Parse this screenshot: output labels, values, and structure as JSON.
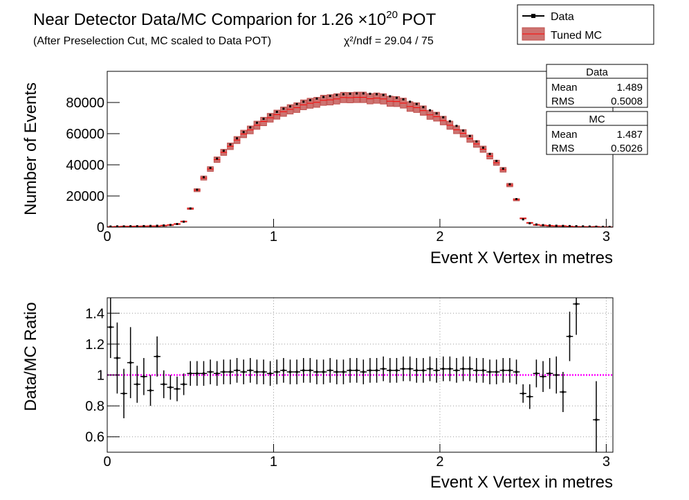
{
  "chart_data": [
    {
      "type": "histogram",
      "title": "Near Detector Data/MC Comparion for 1.26 ×10",
      "title_exponent": "20",
      "title_suffix": "POT",
      "subtitle": "(After Preselection Cut, MC scaled to Data POT)",
      "annotation": "χ²/ndf = 29.04 / 75",
      "x_label": "Event X Vertex in metres",
      "y_label": "Number of Events",
      "x": [
        0.02,
        0.06,
        0.1,
        0.14,
        0.18,
        0.22,
        0.26,
        0.3,
        0.34,
        0.38,
        0.42,
        0.46,
        0.5,
        0.54,
        0.58,
        0.62,
        0.66,
        0.7,
        0.74,
        0.78,
        0.82,
        0.86,
        0.9,
        0.94,
        0.98,
        1.02,
        1.06,
        1.1,
        1.14,
        1.18,
        1.22,
        1.26,
        1.3,
        1.34,
        1.38,
        1.42,
        1.46,
        1.5,
        1.54,
        1.58,
        1.62,
        1.66,
        1.7,
        1.74,
        1.78,
        1.82,
        1.86,
        1.9,
        1.94,
        1.98,
        2.02,
        2.06,
        2.1,
        2.14,
        2.18,
        2.22,
        2.26,
        2.3,
        2.34,
        2.38,
        2.42,
        2.46,
        2.5,
        2.54,
        2.58,
        2.62,
        2.66,
        2.7,
        2.74,
        2.78,
        2.82,
        2.86,
        2.9,
        2.94,
        2.98,
        3.02
      ],
      "xlim": [
        0,
        3.04
      ],
      "xticks": [
        0,
        1,
        2,
        3
      ],
      "ylim": [
        0,
        100000
      ],
      "yticks": [
        0,
        20000,
        40000,
        60000,
        80000
      ],
      "grid": false,
      "legend": "top-right",
      "series": [
        {
          "name": "Data",
          "color": "#000000",
          "values": [
            400,
            500,
            500,
            600,
            600,
            700,
            800,
            900,
            1100,
            1400,
            2000,
            3500,
            12000,
            24000,
            32000,
            38000,
            44000,
            49000,
            53000,
            57000,
            61000,
            64000,
            67000,
            69500,
            72000,
            74000,
            76000,
            77500,
            79000,
            80500,
            81500,
            82500,
            83500,
            84200,
            84800,
            85300,
            85600,
            85800,
            85800,
            85600,
            85300,
            84800,
            84000,
            83000,
            82000,
            80500,
            79000,
            77000,
            75000,
            73000,
            70500,
            68000,
            65000,
            62000,
            58500,
            55000,
            51000,
            47000,
            42500,
            37500,
            27500,
            18000,
            5000,
            2500,
            1700,
            1300,
            1100,
            900,
            800,
            700,
            600,
            500,
            400,
            300,
            200,
            150
          ]
        },
        {
          "name": "Tuned MC",
          "color": "#c0504d",
          "values": [
            305,
            450,
            570,
            555,
            640,
            705,
            780,
            800,
            1170,
            1520,
            2200,
            3720,
            11900,
            23700,
            31500,
            37300,
            43300,
            48000,
            51900,
            55900,
            59800,
            62400,
            65400,
            67800,
            70200,
            72200,
            74100,
            75600,
            76700,
            78500,
            79500,
            80100,
            81400,
            81700,
            82300,
            83200,
            83100,
            83300,
            83300,
            82400,
            82800,
            82300,
            80800,
            80600,
            79600,
            77400,
            76700,
            74800,
            72100,
            70900,
            68400,
            65400,
            62500,
            60200,
            56800,
            53400,
            50000,
            45600,
            41300,
            36800,
            27000,
            17600,
            5700,
            2900,
            1680,
            1310,
            1090,
            900,
            900,
            560,
            410,
            350,
            300,
            420,
            200,
            150
          ],
          "errors": [
            30,
            30,
            35,
            35,
            40,
            40,
            45,
            45,
            55,
            70,
            100,
            170,
            500,
            950,
            1300,
            1500,
            1750,
            1950,
            2100,
            2250,
            2400,
            2500,
            2600,
            2700,
            2800,
            2900,
            3000,
            3000,
            3100,
            3150,
            3200,
            3200,
            3250,
            3300,
            3300,
            3300,
            3300,
            3350,
            3350,
            3300,
            3300,
            3300,
            3250,
            3200,
            3200,
            3100,
            3100,
            3000,
            2900,
            2850,
            2750,
            2600,
            2500,
            2400,
            2300,
            2150,
            2000,
            1850,
            1650,
            1500,
            1100,
            700,
            230,
            120,
            70,
            55,
            45,
            40,
            40,
            30,
            25,
            20,
            20,
            20,
            15,
            10
          ]
        }
      ],
      "stats": [
        {
          "title": "Data",
          "color": "#000000",
          "rows": [
            [
              "Mean",
              1.489
            ],
            [
              "RMS",
              0.5008
            ]
          ]
        },
        {
          "title": "MC",
          "color": "#ff0000",
          "rows": [
            [
              "Mean",
              1.487
            ],
            [
              "RMS",
              0.5026
            ]
          ]
        }
      ]
    },
    {
      "type": "ratio",
      "x_label": "Event X Vertex in metres",
      "y_label": "Data/MC Ratio",
      "xlim": [
        0,
        3.04
      ],
      "xticks": [
        0,
        1,
        2,
        3
      ],
      "ylim": [
        0.5,
        1.5
      ],
      "yticks": [
        0.6,
        0.8,
        1,
        1.2,
        1.4
      ],
      "grid": true,
      "color": "#000000",
      "reference": 1,
      "reference_color": "#ff00ff",
      "values": [
        1.31,
        1.11,
        0.88,
        1.08,
        0.94,
        0.99,
        0.9,
        1.12,
        0.94,
        0.92,
        0.91,
        0.94,
        1.01,
        1.01,
        1.01,
        1.02,
        1.01,
        1.02,
        1.02,
        1.03,
        1.02,
        1.03,
        1.02,
        1.02,
        1.01,
        1.02,
        1.03,
        1.02,
        1.02,
        1.03,
        1.03,
        1.02,
        1.02,
        1.03,
        1.02,
        1.02,
        1.03,
        1.03,
        1.02,
        1.03,
        1.03,
        1.04,
        1.03,
        1.03,
        1.04,
        1.04,
        1.03,
        1.03,
        1.04,
        1.03,
        1.04,
        1.04,
        1.03,
        1.04,
        1.04,
        1.03,
        1.03,
        1.02,
        1.02,
        1.03,
        1.03,
        1.02,
        0.88,
        0.86,
        1.01,
        0.99,
        1.01,
        1.0,
        0.89,
        1.25,
        1.46,
        null,
        null,
        0.71,
        null,
        null
      ],
      "errors": [
        0.2,
        0.23,
        0.16,
        0.23,
        0.12,
        0.12,
        0.1,
        0.13,
        0.09,
        0.08,
        0.08,
        0.07,
        0.08,
        0.08,
        0.08,
        0.08,
        0.08,
        0.08,
        0.08,
        0.08,
        0.08,
        0.08,
        0.08,
        0.08,
        0.08,
        0.08,
        0.08,
        0.08,
        0.08,
        0.08,
        0.08,
        0.08,
        0.08,
        0.08,
        0.08,
        0.08,
        0.08,
        0.08,
        0.08,
        0.08,
        0.08,
        0.08,
        0.08,
        0.08,
        0.08,
        0.08,
        0.08,
        0.08,
        0.08,
        0.08,
        0.08,
        0.08,
        0.08,
        0.08,
        0.08,
        0.08,
        0.08,
        0.08,
        0.08,
        0.08,
        0.08,
        0.08,
        0.06,
        0.08,
        0.09,
        0.1,
        0.1,
        0.12,
        0.13,
        0.16,
        0.2,
        null,
        null,
        0.25,
        null,
        null
      ]
    }
  ]
}
